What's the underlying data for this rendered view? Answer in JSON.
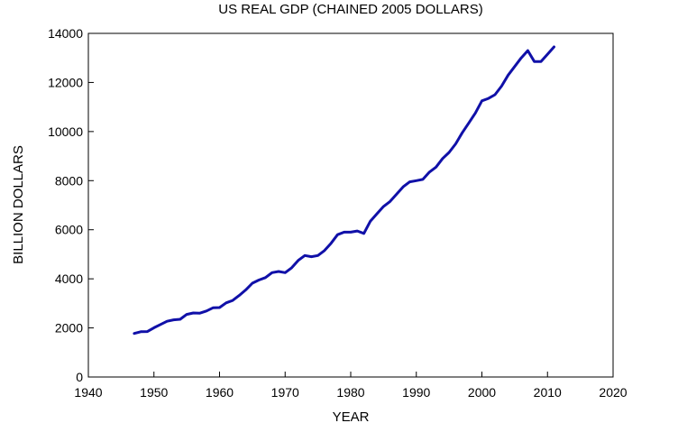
{
  "chart_data": {
    "type": "line",
    "title": "US REAL GDP (CHAINED 2005 DOLLARS)",
    "xlabel": "YEAR",
    "ylabel": "BILLION DOLLARS",
    "xlim": [
      1940,
      2020
    ],
    "ylim": [
      0,
      14000
    ],
    "xticks": [
      "1940",
      "1950",
      "1960",
      "1970",
      "1980",
      "1990",
      "2000",
      "2010",
      "2020"
    ],
    "yticks": [
      "0",
      "2000",
      "4000",
      "6000",
      "8000",
      "10000",
      "12000",
      "14000"
    ],
    "grid": false,
    "legend": "none",
    "line_color": "#1010a8",
    "series": [
      {
        "x": [
          1947,
          1948,
          1949,
          1950,
          1951,
          1952,
          1953,
          1954,
          1955,
          1956,
          1957,
          1958,
          1959,
          1960,
          1961,
          1962,
          1963,
          1964,
          1965,
          1966,
          1967,
          1968,
          1969,
          1970,
          1971,
          1972,
          1973,
          1974,
          1975,
          1976,
          1977,
          1978,
          1979,
          1980,
          1981,
          1982,
          1983,
          1984,
          1985,
          1986,
          1987,
          1988,
          1989,
          1990,
          1991,
          1992,
          1993,
          1994,
          1995,
          1996,
          1997,
          1998,
          1999,
          2000,
          2001,
          2002,
          2003,
          2004,
          2005,
          2006,
          2007,
          2008,
          2009,
          2010,
          2011
        ],
        "values": [
          1776,
          1844,
          1851,
          2005,
          2137,
          2270,
          2330,
          2350,
          2550,
          2610,
          2600,
          2690,
          2820,
          2830,
          3020,
          3120,
          3320,
          3550,
          3820,
          3950,
          4050,
          4250,
          4300,
          4250,
          4450,
          4750,
          4950,
          4900,
          4950,
          5150,
          5450,
          5800,
          5900,
          5900,
          5950,
          5850,
          6350,
          6650,
          6950,
          7150,
          7450,
          7750,
          7950,
          8000,
          8050,
          8350,
          8550,
          8900,
          9150,
          9500,
          9950,
          10350,
          10750,
          11250,
          11350,
          11500,
          11850,
          12300,
          12650,
          13000,
          13300,
          12850,
          12850,
          13150,
          13450
        ]
      }
    ]
  }
}
